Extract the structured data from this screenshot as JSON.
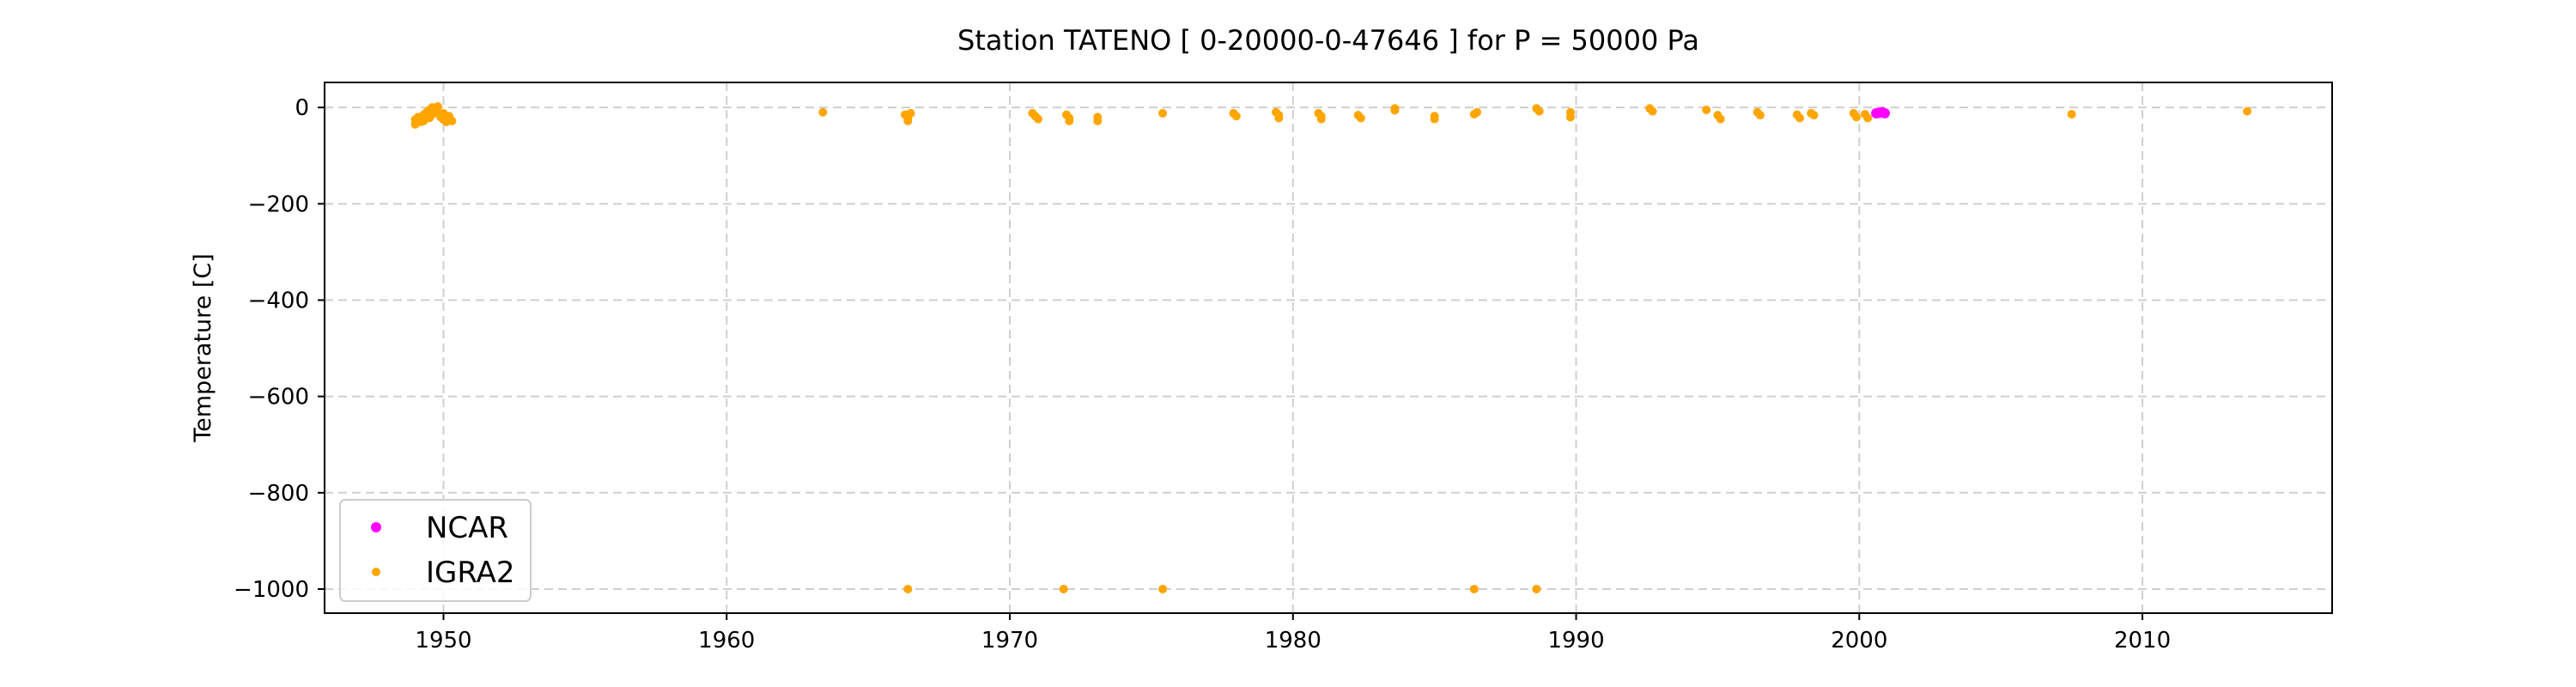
{
  "chart_data": {
    "type": "scatter",
    "title": "Station  TATENO [ 0-20000-0-47646 ]  for P = 50000 Pa",
    "xlabel": "",
    "ylabel": "Temperature [C]",
    "xlim": [
      1945.8,
      2016.7
    ],
    "ylim": [
      -1050,
      52
    ],
    "xticks": [
      1950,
      1960,
      1970,
      1980,
      1990,
      2000,
      2010
    ],
    "yticks": [
      0,
      -200,
      -400,
      -600,
      -800,
      -1000
    ],
    "ytick_labels": [
      "0",
      "−200",
      "−400",
      "−600",
      "−800",
      "−1000"
    ],
    "grid": true,
    "legend_position": "lower-left",
    "series": [
      {
        "name": "NCAR",
        "color": "#ff00ff",
        "points": [
          [
            2000.6,
            -12
          ],
          [
            2000.7,
            -11
          ],
          [
            2000.8,
            -10
          ],
          [
            2000.9,
            -12
          ]
        ]
      },
      {
        "name": "IGRA2",
        "color": "#ffa500",
        "points": [
          [
            1949.0,
            -25
          ],
          [
            1949.0,
            -35
          ],
          [
            1949.1,
            -20
          ],
          [
            1949.2,
            -30
          ],
          [
            1949.3,
            -15
          ],
          [
            1949.3,
            -28
          ],
          [
            1949.4,
            -10
          ],
          [
            1949.5,
            -5
          ],
          [
            1949.5,
            -22
          ],
          [
            1949.6,
            0
          ],
          [
            1949.6,
            -15
          ],
          [
            1949.7,
            -3
          ],
          [
            1949.8,
            2
          ],
          [
            1949.8,
            -10
          ],
          [
            1949.9,
            -20
          ],
          [
            1950.0,
            -12
          ],
          [
            1950.0,
            -25
          ],
          [
            1950.1,
            -30
          ],
          [
            1950.2,
            -18
          ],
          [
            1950.3,
            -28
          ],
          [
            1963.4,
            -10
          ],
          [
            1966.3,
            -15
          ],
          [
            1966.4,
            -22
          ],
          [
            1966.4,
            -28
          ],
          [
            1966.5,
            -12
          ],
          [
            1970.8,
            -12
          ],
          [
            1970.9,
            -18
          ],
          [
            1971.0,
            -24
          ],
          [
            1972.0,
            -15
          ],
          [
            1972.1,
            -22
          ],
          [
            1972.1,
            -28
          ],
          [
            1973.1,
            -20
          ],
          [
            1973.1,
            -28
          ],
          [
            1975.4,
            -12
          ],
          [
            1977.9,
            -12
          ],
          [
            1978.0,
            -18
          ],
          [
            1979.4,
            -10
          ],
          [
            1979.5,
            -16
          ],
          [
            1979.5,
            -22
          ],
          [
            1980.9,
            -12
          ],
          [
            1981.0,
            -18
          ],
          [
            1981.0,
            -24
          ],
          [
            1982.3,
            -16
          ],
          [
            1982.4,
            -22
          ],
          [
            1983.6,
            -6
          ],
          [
            1983.6,
            -2
          ],
          [
            1985.0,
            -18
          ],
          [
            1985.0,
            -24
          ],
          [
            1986.4,
            -14
          ],
          [
            1986.5,
            -10
          ],
          [
            1988.6,
            -2
          ],
          [
            1988.7,
            -8
          ],
          [
            1989.8,
            -10
          ],
          [
            1989.8,
            -20
          ],
          [
            1992.6,
            -2
          ],
          [
            1992.7,
            -8
          ],
          [
            1994.6,
            -5
          ],
          [
            1995.0,
            -16
          ],
          [
            1995.1,
            -24
          ],
          [
            1996.4,
            -10
          ],
          [
            1996.5,
            -16
          ],
          [
            1997.8,
            -15
          ],
          [
            1997.9,
            -22
          ],
          [
            1998.3,
            -12
          ],
          [
            1998.4,
            -16
          ],
          [
            1999.8,
            -12
          ],
          [
            1999.9,
            -20
          ],
          [
            2000.2,
            -14
          ],
          [
            2000.3,
            -22
          ],
          [
            2007.5,
            -14
          ],
          [
            2013.7,
            -8
          ],
          [
            1966.4,
            -1000
          ],
          [
            1971.9,
            -1000
          ],
          [
            1975.4,
            -1000
          ],
          [
            1986.4,
            -1000
          ],
          [
            1988.6,
            -1000
          ]
        ]
      }
    ]
  }
}
